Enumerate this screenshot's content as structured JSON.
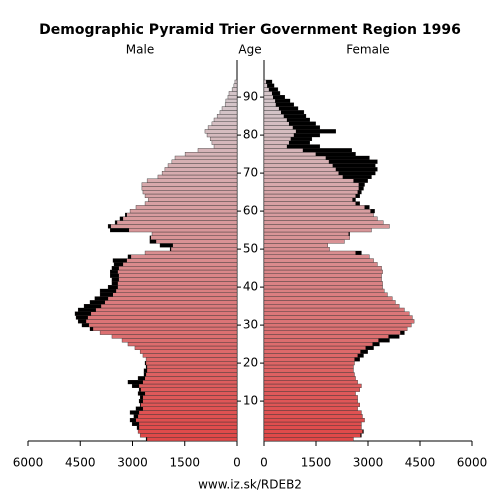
{
  "chart_data": {
    "type": "pyramid",
    "title": "Demographic Pyramid Trier Government Region 1996",
    "ylabel": "Age",
    "source": "www.iz.sk/RDEB2",
    "y": [
      0,
      1,
      2,
      3,
      4,
      5,
      6,
      7,
      8,
      9,
      10,
      11,
      12,
      13,
      14,
      15,
      16,
      17,
      18,
      19,
      20,
      21,
      22,
      23,
      24,
      25,
      26,
      27,
      28,
      29,
      30,
      31,
      32,
      33,
      34,
      35,
      36,
      37,
      38,
      39,
      40,
      41,
      42,
      43,
      44,
      45,
      46,
      47,
      48,
      49,
      50,
      51,
      52,
      53,
      54,
      55,
      56,
      57,
      58,
      59,
      60,
      61,
      62,
      63,
      64,
      65,
      66,
      67,
      68,
      69,
      70,
      71,
      72,
      73,
      74,
      75,
      76,
      77,
      78,
      79,
      80,
      81,
      82,
      83,
      84,
      85,
      86,
      87,
      88,
      89,
      90,
      91,
      92,
      93,
      94
    ],
    "series": [
      {
        "name": "Male",
        "values": [
          2610,
          2780,
          2840,
          2870,
          3010,
          3070,
          2960,
          3070,
          2900,
          2780,
          2810,
          2780,
          2840,
          2810,
          3010,
          3130,
          2840,
          2670,
          2670,
          2610,
          2640,
          2610,
          2700,
          2780,
          2930,
          3130,
          3300,
          3590,
          3930,
          4220,
          4450,
          4560,
          4620,
          4650,
          4560,
          4390,
          4220,
          4080,
          3930,
          3930,
          3700,
          3590,
          3590,
          3640,
          3640,
          3590,
          3530,
          3560,
          3130,
          2640,
          1920,
          2210,
          2500,
          2500,
          2440,
          3640,
          3700,
          3500,
          3360,
          3210,
          3070,
          2900,
          2640,
          2550,
          2640,
          2700,
          2730,
          2730,
          2580,
          2270,
          2150,
          2070,
          1980,
          1870,
          1780,
          1490,
          1120,
          660,
          720,
          770,
          860,
          920,
          830,
          720,
          660,
          570,
          490,
          430,
          340,
          320,
          260,
          230,
          140,
          90,
          60
        ]
      },
      {
        "name": "Female",
        "values": [
          2580,
          2810,
          2870,
          2810,
          2810,
          2900,
          2840,
          2810,
          2700,
          2760,
          2700,
          2700,
          2640,
          2760,
          2810,
          2700,
          2640,
          2610,
          2580,
          2580,
          2610,
          2760,
          2870,
          2990,
          3160,
          3330,
          3620,
          3900,
          4050,
          4130,
          4250,
          4330,
          4280,
          4190,
          4050,
          3900,
          3790,
          3700,
          3560,
          3470,
          3420,
          3420,
          3390,
          3390,
          3420,
          3390,
          3270,
          3160,
          3040,
          2810,
          1890,
          1840,
          2320,
          2470,
          2470,
          3100,
          3620,
          3440,
          3270,
          3160,
          3190,
          3040,
          2760,
          2640,
          2760,
          2810,
          2870,
          2900,
          2990,
          3100,
          3210,
          3270,
          3210,
          3270,
          3040,
          2640,
          2530,
          1610,
          1320,
          1380,
          1610,
          2070,
          1610,
          1490,
          1320,
          1210,
          1150,
          980,
          860,
          750,
          600,
          460,
          400,
          290,
          230
        ]
      }
    ],
    "xlim": [
      0,
      6000
    ],
    "xticks": [
      0,
      1500,
      3000,
      4500,
      6000
    ],
    "ylim": [
      0,
      100
    ],
    "yticks": [
      10,
      20,
      30,
      40,
      50,
      60,
      70,
      80,
      90
    ],
    "color_range": [
      "#e04848",
      "#d4c4c8"
    ],
    "excess_color": "#000000"
  }
}
